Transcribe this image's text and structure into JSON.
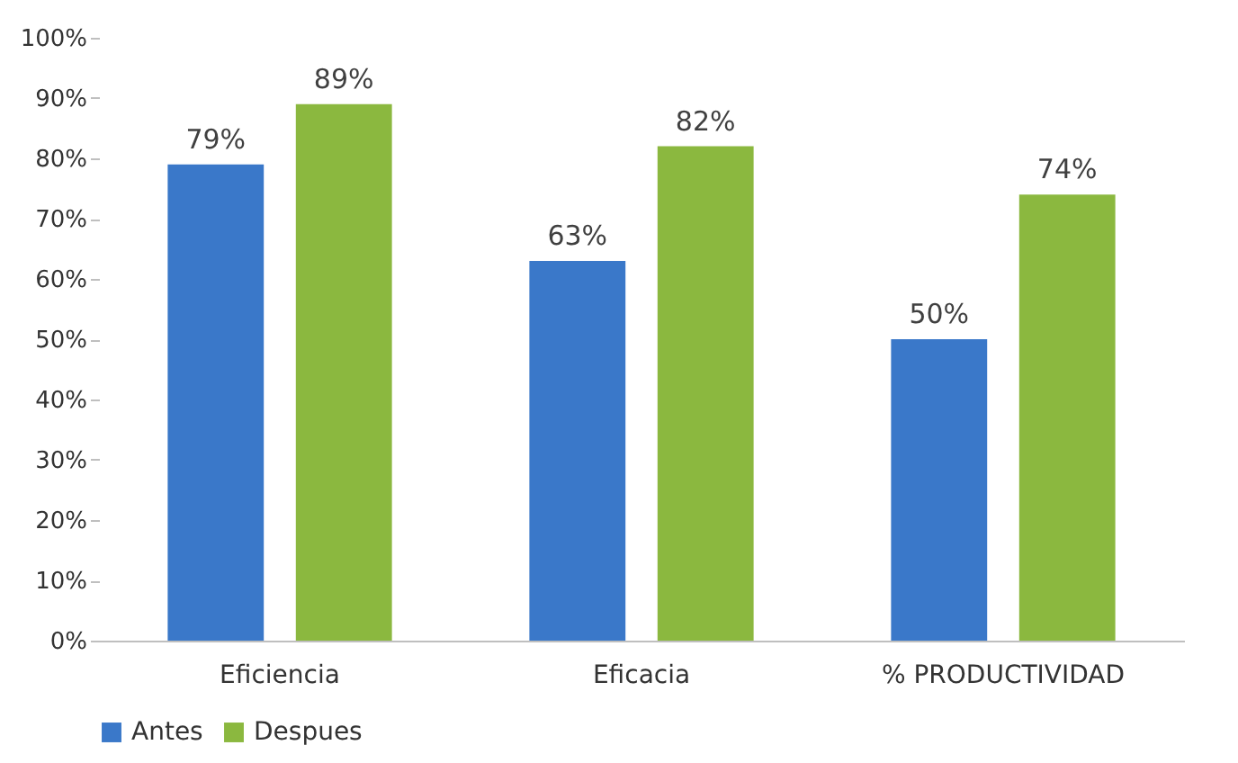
{
  "chart_data": {
    "type": "bar",
    "categories": [
      "Eficiencia",
      "Eficacia",
      "% PRODUCTIVIDAD"
    ],
    "series": [
      {
        "name": "Antes",
        "color": "#3a78c9",
        "values": [
          79,
          63,
          50
        ],
        "value_labels": [
          "79%",
          "63%",
          "50%"
        ]
      },
      {
        "name": "Despues",
        "color": "#8bb83f",
        "values": [
          89,
          82,
          74
        ],
        "value_labels": [
          "89%",
          "82%",
          "74%"
        ]
      }
    ],
    "ylim": [
      0,
      100
    ],
    "yticks": [
      {
        "value": 0,
        "label": "0%"
      },
      {
        "value": 10,
        "label": "10%"
      },
      {
        "value": 20,
        "label": "20%"
      },
      {
        "value": 30,
        "label": "30%"
      },
      {
        "value": 40,
        "label": "40%"
      },
      {
        "value": 50,
        "label": "50%"
      },
      {
        "value": 60,
        "label": "60%"
      },
      {
        "value": 70,
        "label": "70%"
      },
      {
        "value": 80,
        "label": "80%"
      },
      {
        "value": 90,
        "label": "90%"
      },
      {
        "value": 100,
        "label": "100%"
      }
    ],
    "legend": "bottom",
    "grid": false
  }
}
